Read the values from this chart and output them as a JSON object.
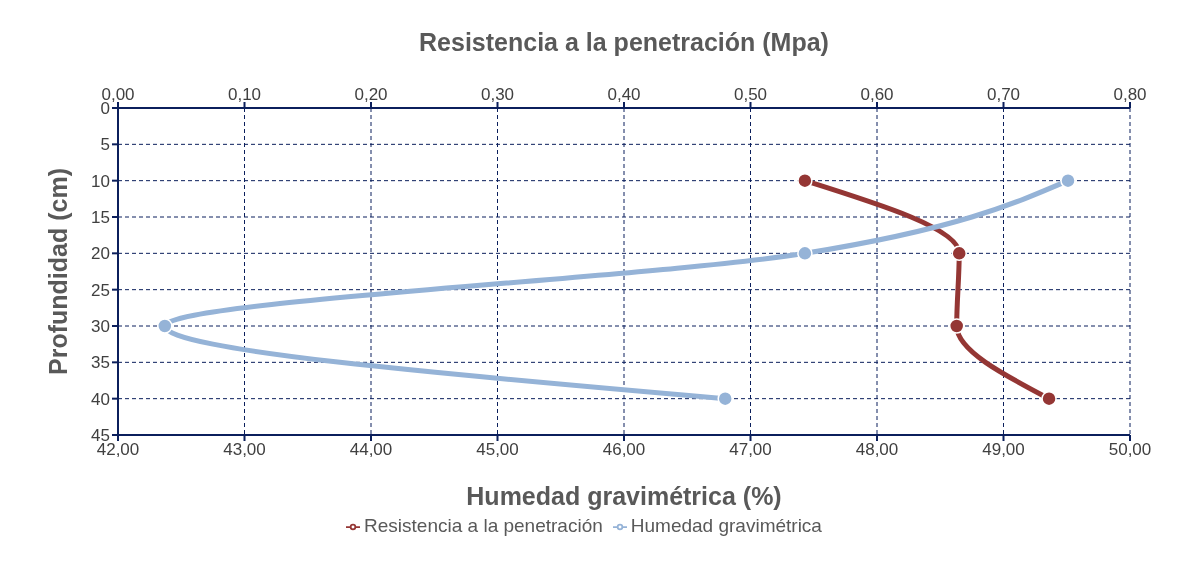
{
  "chart_data": {
    "type": "line",
    "xlabel": "Humedad gravimétrica (%)",
    "x2label": "Resistencia a la penetración (Mpa)",
    "ylabel": "Profundidad (cm)",
    "xlim": [
      42,
      50
    ],
    "xticks": [
      {
        "value": 42,
        "label": "42,00"
      },
      {
        "value": 43,
        "label": "43,00"
      },
      {
        "value": 44,
        "label": "44,00"
      },
      {
        "value": 45,
        "label": "45,00"
      },
      {
        "value": 46,
        "label": "46,00"
      },
      {
        "value": 47,
        "label": "47,00"
      },
      {
        "value": 48,
        "label": "48,00"
      },
      {
        "value": 49,
        "label": "49,00"
      },
      {
        "value": 50,
        "label": "50,00"
      }
    ],
    "x2lim": [
      0,
      0.8
    ],
    "x2ticks": [
      {
        "value": 0,
        "label": "0,00"
      },
      {
        "value": 0.1,
        "label": "0,10"
      },
      {
        "value": 0.2,
        "label": "0,20"
      },
      {
        "value": 0.3,
        "label": "0,30"
      },
      {
        "value": 0.4,
        "label": "0,40"
      },
      {
        "value": 0.5,
        "label": "0,50"
      },
      {
        "value": 0.6,
        "label": "0,60"
      },
      {
        "value": 0.7,
        "label": "0,70"
      },
      {
        "value": 0.8,
        "label": "0,80"
      }
    ],
    "ylim": [
      45,
      0
    ],
    "yticks": [
      0,
      5,
      10,
      15,
      20,
      25,
      30,
      35,
      40,
      45
    ],
    "grid": true,
    "legend": "bottom",
    "marker": "circle",
    "line_style": "solid",
    "series": [
      {
        "name": "Resistencia a la penetración",
        "color": "#943634",
        "axis": "x2",
        "x": [
          0.543,
          0.665,
          0.663,
          0.736
        ],
        "values": [
          10,
          20,
          30,
          40
        ]
      },
      {
        "name": "Humedad gravimétrica",
        "color": "#95b3d7",
        "x": [
          49.51,
          47.43,
          42.37,
          46.8
        ],
        "values": [
          10,
          20,
          30,
          40
        ]
      }
    ]
  }
}
